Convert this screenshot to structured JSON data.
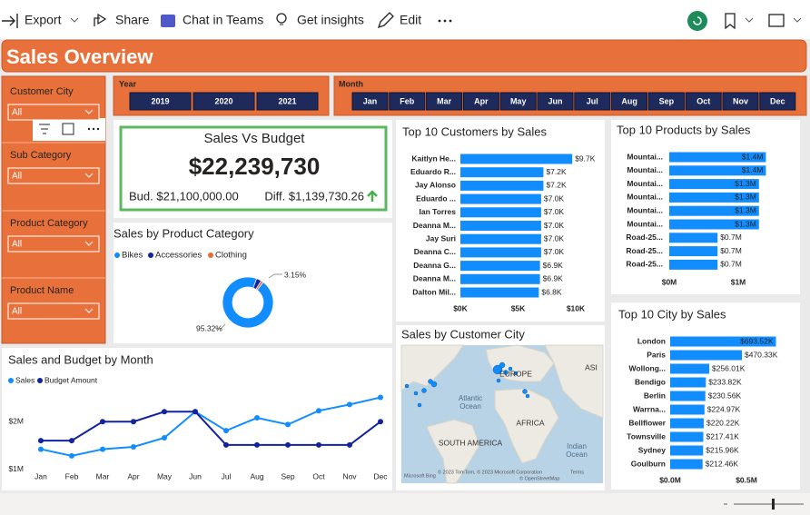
{
  "toolbar": {
    "items": [
      "Export",
      "Share",
      "Chat in Teams",
      "Get insights",
      "Edit"
    ]
  },
  "header": {
    "title": "Sales Overview"
  },
  "year_slicer": {
    "label": "Year",
    "options": [
      "2019",
      "2020",
      "2021"
    ]
  },
  "month_slicer": {
    "label": "Month",
    "options": [
      "Jan",
      "Feb",
      "Mar",
      "Apr",
      "May",
      "Jun",
      "Jul",
      "Aug",
      "Sep",
      "Oct",
      "Nov",
      "Dec"
    ]
  },
  "slicers": [
    {
      "label": "Customer City",
      "value": "All"
    },
    {
      "label": "Sub Category",
      "value": "All"
    },
    {
      "label": "Product Category",
      "value": "All"
    },
    {
      "label": "Product Name",
      "value": "All"
    }
  ],
  "kpi": {
    "title": "Sales Vs Budget",
    "value": "$22,239,730",
    "budget": "Bud. $21,100,000.00",
    "diff": "Diff. $1,139,730.26"
  },
  "category_chart": {
    "type": "pie",
    "title": "Sales by Product Category",
    "categories": [
      "Bikes",
      "Accessories",
      "Clothing"
    ],
    "values": [
      95.32,
      3.15,
      1.53
    ],
    "value_labels": [
      "95.32%",
      "3.15%",
      null
    ],
    "colors": [
      "#118dff",
      "#12239e",
      "#e66c37"
    ]
  },
  "customers_chart": {
    "type": "bar",
    "title": "Top 10 Customers by Sales",
    "color": "#118dff",
    "categories": [
      "Kaitlyn He...",
      "Eduardo R...",
      "Jay Alonso",
      "Eduardo ...",
      "Ian Torres",
      "Deanna M...",
      "Jay Suri",
      "Deanna C...",
      "Deanna G...",
      "Deanna M...",
      "Dalton Mil..."
    ],
    "values": [
      9700,
      7200,
      7200,
      7000,
      7000,
      7000,
      7000,
      7000,
      6900,
      6900,
      6800
    ],
    "value_labels": [
      "$9.7K",
      "$7.2K",
      "$7.2K",
      "$7.0K",
      "$7.0K",
      "$7.0K",
      "$7.0K",
      "$7.0K",
      "$6.9K",
      "$6.9K",
      "$6.8K"
    ],
    "xlim": [
      0,
      10000
    ],
    "xticks": [
      {
        "value": 0,
        "label": "$0K"
      },
      {
        "value": 5000,
        "label": "$5K"
      },
      {
        "value": 10000,
        "label": "$10K"
      }
    ]
  },
  "products_chart": {
    "type": "bar",
    "title": "Top 10 Products by Sales",
    "color": "#118dff",
    "categories": [
      "Mountai...",
      "Mountai...",
      "Mountai...",
      "Mountai...",
      "Mountai...",
      "Mountai...",
      "Road-25...",
      "Road-25...",
      "Road-25..."
    ],
    "values": [
      1400000,
      1400000,
      1300000,
      1300000,
      1300000,
      1300000,
      700000,
      700000,
      700000
    ],
    "value_labels": [
      "$1.4M",
      "$1.4M",
      "$1.3M",
      "$1.3M",
      "$1.3M",
      "$1.3M",
      "$0.7M",
      "$0.7M",
      "$0.7M"
    ],
    "xlim": [
      0,
      1500000
    ],
    "xticks": [
      {
        "value": 0,
        "label": "$0M"
      },
      {
        "value": 1000000,
        "label": "$1M"
      }
    ]
  },
  "city_chart": {
    "type": "bar",
    "title": "Top 10 City by Sales",
    "color": "#118dff",
    "categories": [
      "London",
      "Paris",
      "Wollong...",
      "Bendigo",
      "Berlin",
      "Warrna...",
      "Bellflower",
      "Townsville",
      "Sydney",
      "Goulburn"
    ],
    "values": [
      693520,
      470330,
      256010,
      233820,
      230560,
      224970,
      220220,
      217410,
      215960,
      212460
    ],
    "value_labels": [
      "$693.52K",
      "$470.33K",
      "$256.01K",
      "$233.82K",
      "$230.56K",
      "$224.97K",
      "$220.22K",
      "$217.41K",
      "$215.96K",
      "$212.46K"
    ],
    "xlim": [
      0,
      700000
    ],
    "xticks": [
      {
        "value": 0,
        "label": "$0.0M"
      },
      {
        "value": 500000,
        "label": "$0.5M"
      }
    ]
  },
  "month_chart": {
    "type": "line",
    "title": "Sales and Budget by Month",
    "categories": [
      "Jan",
      "Feb",
      "Mar",
      "Apr",
      "May",
      "Jun",
      "Jul",
      "Aug",
      "Sep",
      "Oct",
      "Nov",
      "Dec"
    ],
    "series": [
      {
        "name": "Sales",
        "color": "#118dff",
        "values": [
          1420000,
          1280000,
          1420000,
          1470000,
          1660000,
          2210000,
          1810000,
          2080000,
          1940000,
          2230000,
          2360000,
          2510000
        ]
      },
      {
        "name": "Budget Amount",
        "color": "#12239e",
        "values": [
          1600000,
          1600000,
          2000000,
          2000000,
          2210000,
          2210000,
          1510000,
          1510000,
          1510000,
          1510000,
          1510000,
          2000000
        ]
      }
    ],
    "ylim": [
      800000,
      2750000
    ],
    "yticks": [
      {
        "value": 1000000,
        "label": "$1M"
      },
      {
        "value": 2000000,
        "label": "$2M"
      }
    ]
  },
  "map": {
    "title": "Sales by Customer City",
    "labels": [
      "EUROPE",
      "ASI",
      "Atlantic",
      "Ocean",
      "AFRICA",
      "SOUTH AMERICA",
      "Indian",
      "Ocean"
    ],
    "attribution": "© 2023 TomTom, © 2023 Microsoft Corporation",
    "terms": "Terms",
    "osm": "© OpenStreetMap",
    "brand": "Microsoft Bing"
  }
}
